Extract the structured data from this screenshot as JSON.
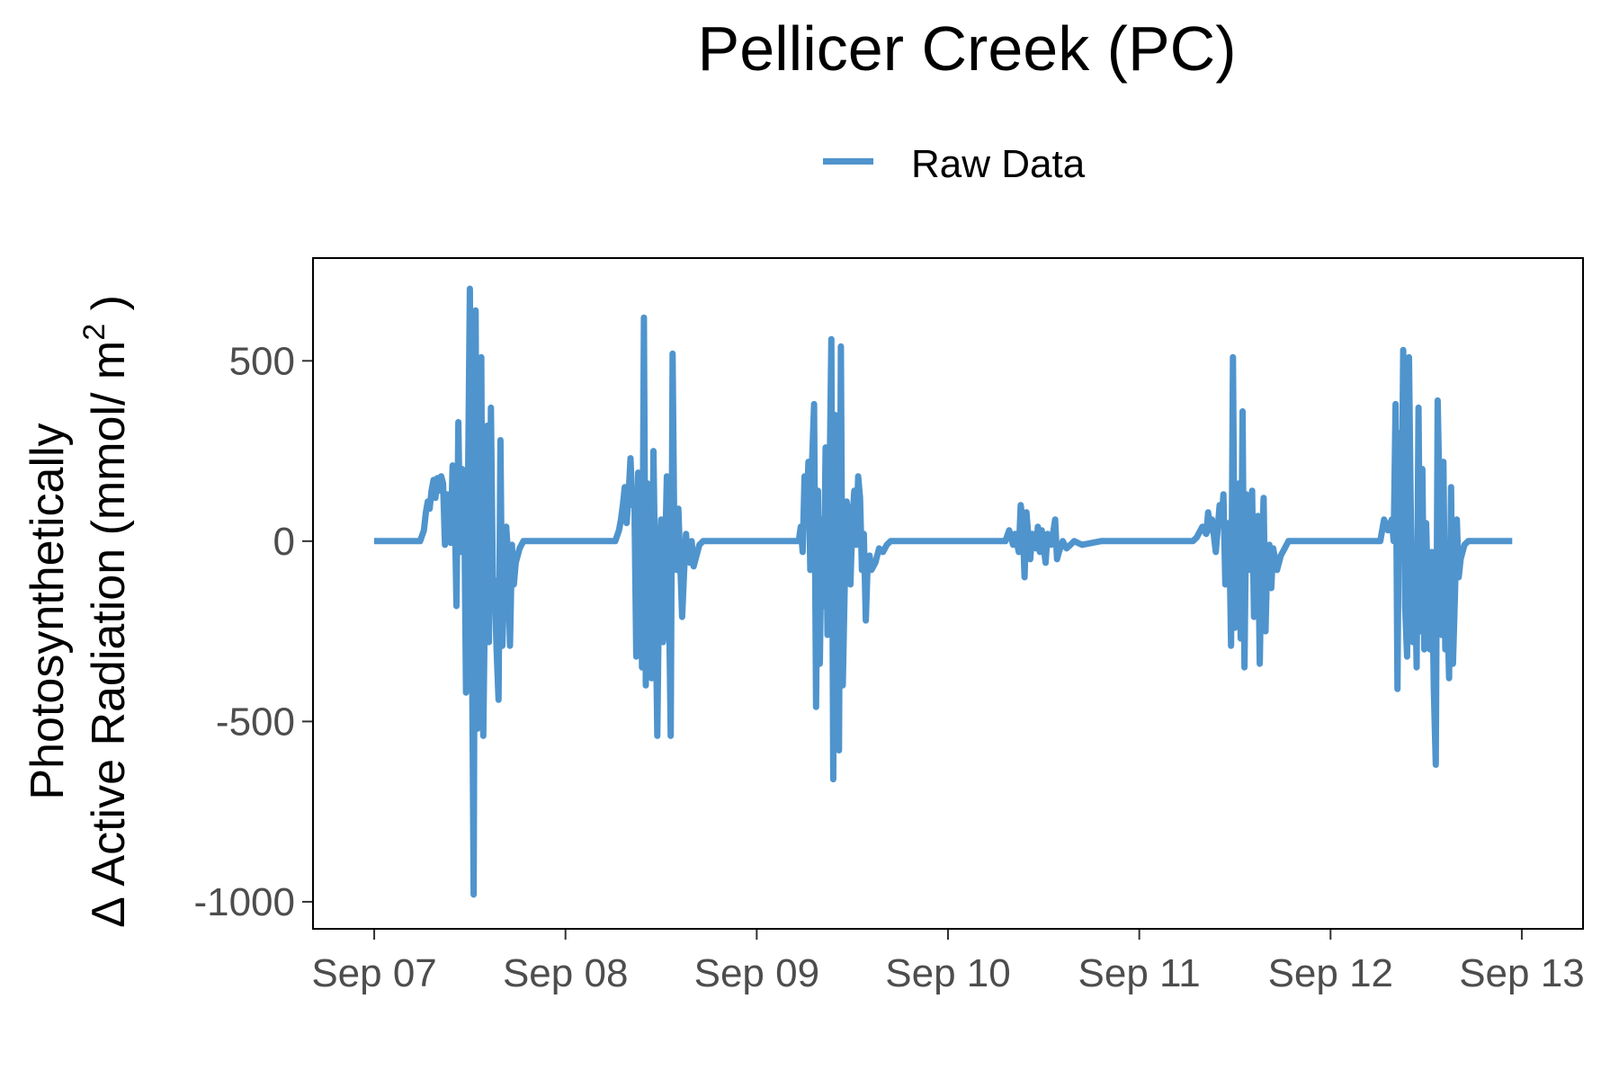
{
  "chart_data": {
    "type": "line",
    "title": "Pellicer Creek (PC)",
    "ylabel": {
      "line1": "Photosynthetically",
      "line2_prefix": "Δ Active Radiation (mmol/ m",
      "superscript": "2",
      "line2_suffix": " )"
    },
    "xlabel": "",
    "legend": {
      "position": "top",
      "entries": [
        "Raw Data"
      ]
    },
    "grid": false,
    "x_ticks": [
      {
        "value": 0,
        "label": "Sep 07"
      },
      {
        "value": 1,
        "label": "Sep 08"
      },
      {
        "value": 2,
        "label": "Sep 09"
      },
      {
        "value": 3,
        "label": "Sep 10"
      },
      {
        "value": 4,
        "label": "Sep 11"
      },
      {
        "value": 5,
        "label": "Sep 12"
      },
      {
        "value": 6,
        "label": "Sep 13"
      }
    ],
    "y_ticks": [
      {
        "value": 500,
        "label": "500"
      },
      {
        "value": 0,
        "label": "0"
      },
      {
        "value": -500,
        "label": "-500"
      },
      {
        "value": -1000,
        "label": "-1000"
      }
    ],
    "xlim": [
      -0.32,
      6.32
    ],
    "ylim": [
      -1075,
      785
    ],
    "series": [
      {
        "name": "Raw Data",
        "color": "#4F94CD",
        "points": [
          [
            0.0,
            0
          ],
          [
            0.24,
            0
          ],
          [
            0.26,
            30
          ],
          [
            0.27,
            80
          ],
          [
            0.28,
            110
          ],
          [
            0.29,
            90
          ],
          [
            0.3,
            140
          ],
          [
            0.31,
            170
          ],
          [
            0.32,
            120
          ],
          [
            0.33,
            175
          ],
          [
            0.34,
            140
          ],
          [
            0.35,
            180
          ],
          [
            0.36,
            160
          ],
          [
            0.37,
            -10
          ],
          [
            0.38,
            130
          ],
          [
            0.39,
            120
          ],
          [
            0.4,
            -5
          ],
          [
            0.41,
            210
          ],
          [
            0.42,
            120
          ],
          [
            0.43,
            -180
          ],
          [
            0.44,
            330
          ],
          [
            0.45,
            -30
          ],
          [
            0.46,
            200
          ],
          [
            0.47,
            150
          ],
          [
            0.48,
            -420
          ],
          [
            0.49,
            120
          ],
          [
            0.5,
            700
          ],
          [
            0.51,
            -180
          ],
          [
            0.52,
            -980
          ],
          [
            0.53,
            640
          ],
          [
            0.54,
            -520
          ],
          [
            0.55,
            -90
          ],
          [
            0.56,
            510
          ],
          [
            0.57,
            -540
          ],
          [
            0.58,
            -120
          ],
          [
            0.59,
            320
          ],
          [
            0.6,
            -280
          ],
          [
            0.61,
            370
          ],
          [
            0.62,
            -100
          ],
          [
            0.63,
            -120
          ],
          [
            0.64,
            -300
          ],
          [
            0.65,
            -440
          ],
          [
            0.66,
            280
          ],
          [
            0.67,
            -290
          ],
          [
            0.68,
            -120
          ],
          [
            0.69,
            40
          ],
          [
            0.7,
            -40
          ],
          [
            0.71,
            -290
          ],
          [
            0.72,
            -10
          ],
          [
            0.73,
            -120
          ],
          [
            0.74,
            -60
          ],
          [
            0.76,
            -20
          ],
          [
            0.78,
            0
          ],
          [
            1.0,
            0
          ],
          [
            1.26,
            0
          ],
          [
            1.28,
            30
          ],
          [
            1.29,
            60
          ],
          [
            1.3,
            100
          ],
          [
            1.31,
            150
          ],
          [
            1.32,
            50
          ],
          [
            1.33,
            130
          ],
          [
            1.34,
            230
          ],
          [
            1.35,
            100
          ],
          [
            1.36,
            120
          ],
          [
            1.37,
            -320
          ],
          [
            1.38,
            190
          ],
          [
            1.39,
            50
          ],
          [
            1.4,
            -350
          ],
          [
            1.41,
            620
          ],
          [
            1.42,
            -400
          ],
          [
            1.43,
            160
          ],
          [
            1.44,
            -250
          ],
          [
            1.45,
            -380
          ],
          [
            1.46,
            250
          ],
          [
            1.47,
            -120
          ],
          [
            1.48,
            -540
          ],
          [
            1.49,
            -80
          ],
          [
            1.5,
            60
          ],
          [
            1.51,
            -280
          ],
          [
            1.52,
            -60
          ],
          [
            1.53,
            180
          ],
          [
            1.54,
            -110
          ],
          [
            1.55,
            -540
          ],
          [
            1.56,
            520
          ],
          [
            1.57,
            -40
          ],
          [
            1.58,
            -80
          ],
          [
            1.59,
            90
          ],
          [
            1.6,
            -60
          ],
          [
            1.61,
            -210
          ],
          [
            1.62,
            -90
          ],
          [
            1.63,
            20
          ],
          [
            1.64,
            -40
          ],
          [
            1.65,
            -60
          ],
          [
            1.66,
            0
          ],
          [
            1.67,
            -70
          ],
          [
            1.68,
            -50
          ],
          [
            1.7,
            -10
          ],
          [
            1.72,
            0
          ],
          [
            2.0,
            0
          ],
          [
            2.22,
            0
          ],
          [
            2.23,
            40
          ],
          [
            2.24,
            -30
          ],
          [
            2.25,
            180
          ],
          [
            2.26,
            60
          ],
          [
            2.27,
            220
          ],
          [
            2.28,
            -80
          ],
          [
            2.29,
            230
          ],
          [
            2.3,
            380
          ],
          [
            2.31,
            -460
          ],
          [
            2.32,
            140
          ],
          [
            2.33,
            -340
          ],
          [
            2.34,
            60
          ],
          [
            2.35,
            -180
          ],
          [
            2.36,
            260
          ],
          [
            2.37,
            -260
          ],
          [
            2.38,
            140
          ],
          [
            2.39,
            560
          ],
          [
            2.4,
            -660
          ],
          [
            2.41,
            350
          ],
          [
            2.42,
            -500
          ],
          [
            2.43,
            -580
          ],
          [
            2.44,
            540
          ],
          [
            2.45,
            -400
          ],
          [
            2.46,
            -120
          ],
          [
            2.47,
            110
          ],
          [
            2.48,
            60
          ],
          [
            2.49,
            -120
          ],
          [
            2.5,
            60
          ],
          [
            2.51,
            140
          ],
          [
            2.52,
            -10
          ],
          [
            2.53,
            180
          ],
          [
            2.54,
            120
          ],
          [
            2.55,
            -80
          ],
          [
            2.56,
            20
          ],
          [
            2.57,
            -220
          ],
          [
            2.58,
            -60
          ],
          [
            2.59,
            -40
          ],
          [
            2.6,
            -80
          ],
          [
            2.62,
            -60
          ],
          [
            2.64,
            -20
          ],
          [
            2.66,
            -30
          ],
          [
            2.68,
            -10
          ],
          [
            2.7,
            0
          ],
          [
            3.0,
            0
          ],
          [
            3.3,
            0
          ],
          [
            3.32,
            30
          ],
          [
            3.34,
            -10
          ],
          [
            3.35,
            20
          ],
          [
            3.37,
            -30
          ],
          [
            3.38,
            100
          ],
          [
            3.39,
            60
          ],
          [
            3.4,
            -100
          ],
          [
            3.41,
            80
          ],
          [
            3.43,
            -50
          ],
          [
            3.44,
            20
          ],
          [
            3.46,
            -20
          ],
          [
            3.47,
            40
          ],
          [
            3.48,
            -30
          ],
          [
            3.49,
            30
          ],
          [
            3.51,
            -60
          ],
          [
            3.52,
            20
          ],
          [
            3.54,
            -10
          ],
          [
            3.56,
            60
          ],
          [
            3.57,
            -50
          ],
          [
            3.58,
            -30
          ],
          [
            3.6,
            0
          ],
          [
            3.62,
            -20
          ],
          [
            3.64,
            -10
          ],
          [
            3.66,
            0
          ],
          [
            3.7,
            -10
          ],
          [
            3.8,
            0
          ],
          [
            4.0,
            0
          ],
          [
            4.28,
            0
          ],
          [
            4.3,
            10
          ],
          [
            4.33,
            40
          ],
          [
            4.35,
            20
          ],
          [
            4.36,
            80
          ],
          [
            4.37,
            30
          ],
          [
            4.38,
            60
          ],
          [
            4.4,
            -30
          ],
          [
            4.42,
            100
          ],
          [
            4.43,
            50
          ],
          [
            4.44,
            130
          ],
          [
            4.45,
            -120
          ],
          [
            4.46,
            50
          ],
          [
            4.47,
            40
          ],
          [
            4.48,
            -290
          ],
          [
            4.49,
            510
          ],
          [
            4.5,
            -240
          ],
          [
            4.51,
            -100
          ],
          [
            4.52,
            160
          ],
          [
            4.53,
            -270
          ],
          [
            4.54,
            360
          ],
          [
            4.55,
            -350
          ],
          [
            4.56,
            130
          ],
          [
            4.57,
            80
          ],
          [
            4.58,
            -80
          ],
          [
            4.59,
            140
          ],
          [
            4.6,
            -210
          ],
          [
            4.61,
            -120
          ],
          [
            4.62,
            70
          ],
          [
            4.63,
            -340
          ],
          [
            4.64,
            -40
          ],
          [
            4.65,
            120
          ],
          [
            4.66,
            -250
          ],
          [
            4.67,
            -30
          ],
          [
            4.68,
            -10
          ],
          [
            4.69,
            -130
          ],
          [
            4.7,
            -20
          ],
          [
            4.72,
            -80
          ],
          [
            4.74,
            -40
          ],
          [
            4.76,
            -20
          ],
          [
            4.78,
            0
          ],
          [
            5.0,
            0
          ],
          [
            5.26,
            0
          ],
          [
            5.28,
            60
          ],
          [
            5.3,
            30
          ],
          [
            5.32,
            60
          ],
          [
            5.33,
            0
          ],
          [
            5.34,
            380
          ],
          [
            5.35,
            -410
          ],
          [
            5.36,
            300
          ],
          [
            5.37,
            -20
          ],
          [
            5.38,
            530
          ],
          [
            5.39,
            -180
          ],
          [
            5.4,
            -320
          ],
          [
            5.41,
            510
          ],
          [
            5.42,
            60
          ],
          [
            5.43,
            -280
          ],
          [
            5.44,
            -20
          ],
          [
            5.45,
            -350
          ],
          [
            5.46,
            370
          ],
          [
            5.47,
            -250
          ],
          [
            5.48,
            200
          ],
          [
            5.49,
            -300
          ],
          [
            5.5,
            50
          ],
          [
            5.51,
            -180
          ],
          [
            5.52,
            -300
          ],
          [
            5.53,
            -30
          ],
          [
            5.54,
            -410
          ],
          [
            5.55,
            -620
          ],
          [
            5.56,
            390
          ],
          [
            5.57,
            120
          ],
          [
            5.58,
            -260
          ],
          [
            5.59,
            220
          ],
          [
            5.6,
            -300
          ],
          [
            5.61,
            -160
          ],
          [
            5.62,
            -380
          ],
          [
            5.63,
            150
          ],
          [
            5.64,
            -340
          ],
          [
            5.65,
            -160
          ],
          [
            5.66,
            60
          ],
          [
            5.67,
            -100
          ],
          [
            5.68,
            -50
          ],
          [
            5.69,
            -30
          ],
          [
            5.7,
            -10
          ],
          [
            5.72,
            0
          ],
          [
            5.95,
            0
          ]
        ]
      }
    ]
  }
}
